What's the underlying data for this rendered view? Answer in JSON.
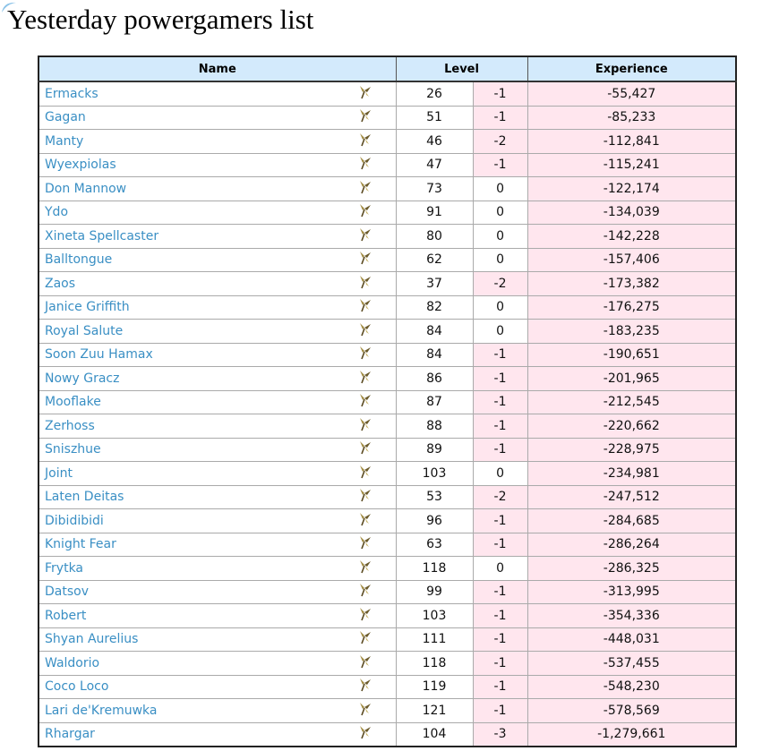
{
  "title": "Yesterday powergamers list",
  "table": {
    "columns": [
      "Name",
      "Level",
      "Experience"
    ],
    "rows": [
      [
        "Ermacks",
        "26",
        "-1",
        "-55,427"
      ],
      [
        "Gagan",
        "51",
        "-1",
        "-85,233"
      ],
      [
        "Manty",
        "46",
        "-2",
        "-112,841"
      ],
      [
        "Wyexpiolas",
        "47",
        "-1",
        "-115,241"
      ],
      [
        "Don Mannow",
        "73",
        "0",
        "-122,174"
      ],
      [
        "Ydo",
        "91",
        "0",
        "-134,039"
      ],
      [
        "Xineta Spellcaster",
        "80",
        "0",
        "-142,228"
      ],
      [
        "Balltongue",
        "62",
        "0",
        "-157,406"
      ],
      [
        "Zaos",
        "37",
        "-2",
        "-173,382"
      ],
      [
        "Janice Griffith",
        "82",
        "0",
        "-176,275"
      ],
      [
        "Royal Salute",
        "84",
        "0",
        "-183,235"
      ],
      [
        "Soon Zuu Hamax",
        "84",
        "-1",
        "-190,651"
      ],
      [
        "Nowy Gracz",
        "86",
        "-1",
        "-201,965"
      ],
      [
        "Mooflake",
        "87",
        "-1",
        "-212,545"
      ],
      [
        "Zerhoss",
        "88",
        "-1",
        "-220,662"
      ],
      [
        "Sniszhue",
        "89",
        "-1",
        "-228,975"
      ],
      [
        "Joint",
        "103",
        "0",
        "-234,981"
      ],
      [
        "Laten Deitas",
        "53",
        "-2",
        "-247,512"
      ],
      [
        "Dibidibidi",
        "96",
        "-1",
        "-284,685"
      ],
      [
        "Knight Fear",
        "63",
        "-1",
        "-286,264"
      ],
      [
        "Frytka",
        "118",
        "0",
        "-286,325"
      ],
      [
        "Datsov",
        "99",
        "-1",
        "-313,995"
      ],
      [
        "Robert",
        "103",
        "-1",
        "-354,336"
      ],
      [
        "Shyan Aurelius",
        "111",
        "-1",
        "-448,031"
      ],
      [
        "Waldorio",
        "118",
        "-1",
        "-537,455"
      ],
      [
        "Coco Loco",
        "119",
        "-1",
        "-548,230"
      ],
      [
        "Lari de'Kremuwka",
        "121",
        "-1",
        "-578,569"
      ],
      [
        "Rhargar",
        "104",
        "-3",
        "-1,279,661"
      ]
    ]
  }
}
